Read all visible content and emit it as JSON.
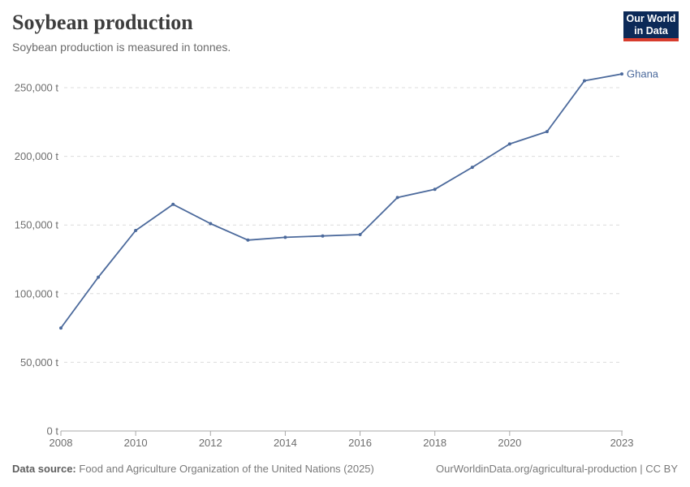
{
  "header": {
    "title": "Soybean production",
    "subtitle": "Soybean production is measured in tonnes."
  },
  "logo": {
    "line1": "Our World",
    "line2": "in Data",
    "background_color": "#0c2a58",
    "bar_color": "#d73c2d"
  },
  "chart_data": {
    "type": "line",
    "title": "Soybean production",
    "subtitle": "Soybean production is measured in tonnes.",
    "unit": "tonnes",
    "unit_suffix": " t",
    "x": [
      2008,
      2009,
      2010,
      2011,
      2012,
      2013,
      2014,
      2015,
      2016,
      2017,
      2018,
      2019,
      2020,
      2021,
      2022,
      2023
    ],
    "series": [
      {
        "name": "Ghana",
        "color": "#4C6A9C",
        "values": [
          75000,
          112000,
          146000,
          165000,
          151000,
          139000,
          141000,
          142000,
          143000,
          170000,
          176000,
          192000,
          209000,
          218000,
          255000,
          260000
        ]
      }
    ],
    "x_ticks": [
      2008,
      2010,
      2012,
      2014,
      2016,
      2018,
      2020,
      2023
    ],
    "y_ticks": [
      0,
      50000,
      100000,
      150000,
      200000,
      250000
    ],
    "xlim": [
      2008,
      2023
    ],
    "ylim": [
      0,
      262000
    ],
    "grid": true,
    "legend": "end-of-line-label",
    "xlabel": "",
    "ylabel": ""
  },
  "footer": {
    "source_label": "Data source:",
    "source_text": "Food and Agriculture Organization of the United Nations (2025)",
    "url": "OurWorldinData.org/agricultural-production",
    "separator": " | ",
    "license": "CC BY"
  }
}
